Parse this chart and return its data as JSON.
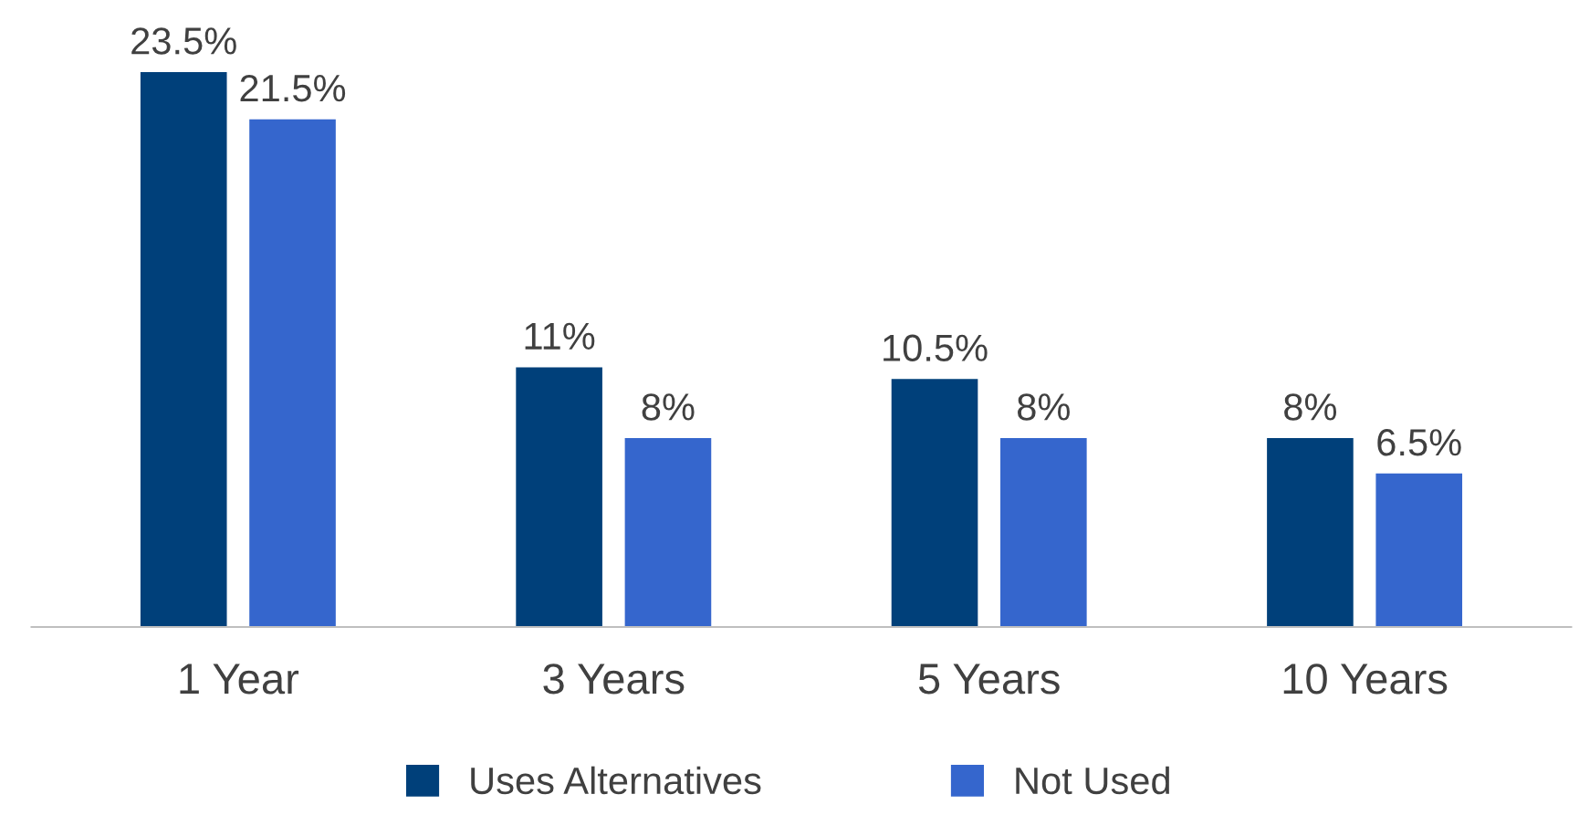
{
  "chart_data": {
    "type": "bar",
    "categories": [
      "1 Year",
      "3 Years",
      "5 Years",
      "10 Years"
    ],
    "series": [
      {
        "name": "Uses Alternatives",
        "color": "#00407a",
        "values": [
          23.5,
          11,
          10.5,
          8
        ],
        "value_labels": [
          "23.5%",
          "11%",
          "10.5%",
          "8%"
        ]
      },
      {
        "name": "Not Used",
        "color": "#3566cd",
        "values": [
          21.5,
          8,
          8,
          6.5
        ],
        "value_labels": [
          "21.5%",
          "8%",
          "8%",
          "6.5%"
        ]
      }
    ],
    "legend": "bottom",
    "grid": false
  }
}
